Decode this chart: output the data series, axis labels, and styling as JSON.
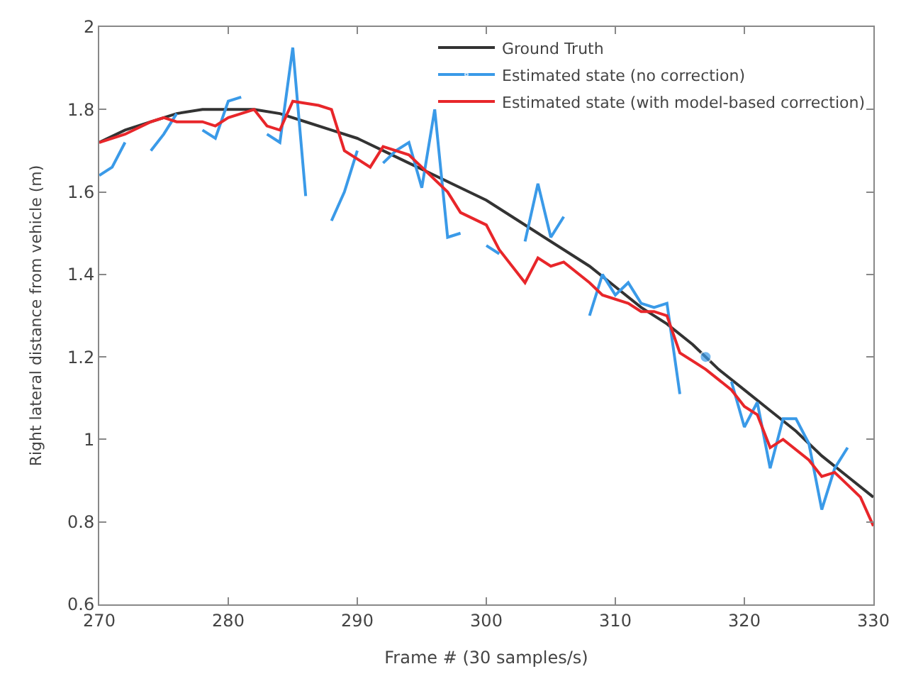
{
  "chart_data": {
    "type": "line",
    "xlabel": "Frame # (30 samples/s)",
    "ylabel": "Right lateral distance from vehicle (m)",
    "xlim": [
      270,
      330
    ],
    "xticks": [
      270,
      280,
      290,
      300,
      310,
      320,
      330
    ],
    "ylim": [
      0.6,
      2
    ],
    "yticks": [
      0.6,
      0.8,
      1,
      1.2,
      1.4,
      1.6,
      1.8,
      2
    ],
    "legend": "top right",
    "marker": "none",
    "line_style": "solid",
    "series": [
      {
        "name": "Ground Truth",
        "color": "#333333",
        "x": [
          270,
          272,
          274,
          276,
          278,
          280,
          282,
          284,
          286,
          288,
          290,
          292,
          294,
          296,
          298,
          300,
          302,
          304,
          306,
          308,
          310,
          312,
          314,
          316,
          318,
          320,
          322,
          324,
          326,
          328,
          330
        ],
        "values": [
          1.72,
          1.75,
          1.77,
          1.79,
          1.8,
          1.8,
          1.8,
          1.79,
          1.77,
          1.75,
          1.73,
          1.7,
          1.67,
          1.64,
          1.61,
          1.58,
          1.54,
          1.5,
          1.46,
          1.42,
          1.37,
          1.32,
          1.28,
          1.23,
          1.17,
          1.12,
          1.07,
          1.02,
          0.96,
          0.91,
          0.86
        ]
      },
      {
        "name": "Estimated state (no correction)",
        "color": "#3a9ae8",
        "x": [
          270,
          271,
          272,
          273,
          274,
          275,
          276,
          277,
          278,
          279,
          280,
          281,
          282,
          283,
          284,
          285,
          286,
          287,
          288,
          289,
          290,
          291,
          292,
          293,
          294,
          295,
          296,
          297,
          298,
          299,
          300,
          301,
          302,
          303,
          304,
          305,
          306,
          307,
          308,
          309,
          310,
          311,
          312,
          313,
          314,
          315,
          316,
          317,
          318,
          319,
          320,
          321,
          322,
          323,
          324,
          325,
          326,
          327,
          328
        ],
        "values": [
          1.64,
          1.66,
          1.72,
          null,
          1.7,
          1.74,
          1.79,
          null,
          1.75,
          1.73,
          1.82,
          1.83,
          null,
          1.74,
          1.72,
          1.95,
          1.59,
          null,
          1.53,
          1.6,
          1.7,
          null,
          1.67,
          1.7,
          1.72,
          1.61,
          1.8,
          1.49,
          1.5,
          null,
          1.47,
          1.45,
          null,
          1.48,
          1.62,
          1.49,
          1.54,
          null,
          1.3,
          1.4,
          1.35,
          1.38,
          1.33,
          1.32,
          1.33,
          1.11,
          null,
          1.2,
          null,
          1.14,
          1.03,
          1.09,
          0.93,
          1.05,
          1.05,
          0.99,
          0.83,
          0.93,
          0.98
        ]
      },
      {
        "name": "Estimated state (with model-based correction)",
        "color": "#e8262a",
        "x": [
          270,
          272,
          274,
          275,
          276,
          278,
          279,
          280,
          281,
          282,
          283,
          284,
          285,
          287,
          288,
          289,
          291,
          292,
          294,
          295,
          297,
          298,
          300,
          301,
          303,
          304,
          305,
          306,
          308,
          309,
          311,
          312,
          313,
          314,
          315,
          317,
          319,
          320,
          321,
          322,
          323,
          325,
          326,
          327,
          328,
          329,
          330
        ],
        "values": [
          1.72,
          1.74,
          1.77,
          1.78,
          1.77,
          1.77,
          1.76,
          1.78,
          1.79,
          1.8,
          1.76,
          1.75,
          1.82,
          1.81,
          1.8,
          1.7,
          1.66,
          1.71,
          1.69,
          1.66,
          1.6,
          1.55,
          1.52,
          1.46,
          1.38,
          1.44,
          1.42,
          1.43,
          1.38,
          1.35,
          1.33,
          1.31,
          1.31,
          1.3,
          1.21,
          1.17,
          1.12,
          1.08,
          1.06,
          0.98,
          1.0,
          0.95,
          0.91,
          0.92,
          0.89,
          0.86,
          0.79
        ]
      }
    ]
  }
}
